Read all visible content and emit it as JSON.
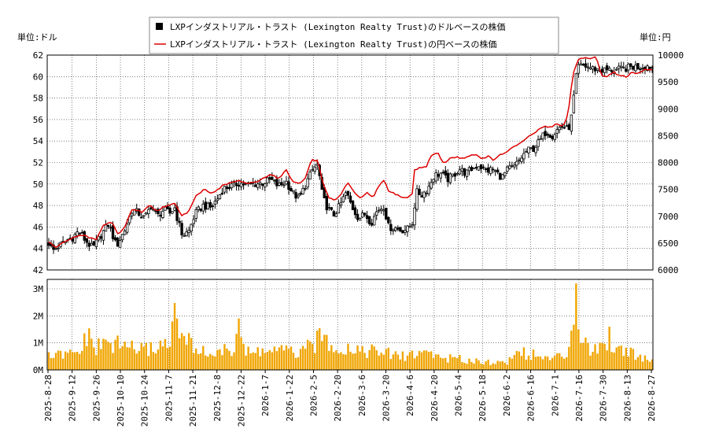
{
  "chart_data": [
    {
      "type": "candlestick+line",
      "legend": {
        "placement": "top-center",
        "items": [
          {
            "label": "LXPインダストリアル・トラスト (Lexington Realty Trust)のドルベースの株価",
            "color": "#000000",
            "marker": "square"
          },
          {
            "label": "LXPインダストリアル・トラスト (Lexington Realty Trust)の円ベースの株価",
            "color": "#dd0000",
            "marker": "line"
          }
        ]
      },
      "left_unit_label": "単位:ドル",
      "right_unit_label": "単位:円",
      "y_left": {
        "min": 42,
        "max": 62,
        "ticks": [
          "42",
          "44",
          "46",
          "48",
          "50",
          "52",
          "54",
          "56",
          "58",
          "60",
          "62"
        ]
      },
      "y_right": {
        "min": 6000,
        "max": 10000,
        "ticks": [
          "6000",
          "6500",
          "7000",
          "7500",
          "8000",
          "8500",
          "9000",
          "9500",
          "10000"
        ]
      },
      "grid": true,
      "usd_close_anchors": [
        [
          0,
          44.5
        ],
        [
          5,
          43.8
        ],
        [
          12,
          44.2
        ],
        [
          20,
          44.6
        ],
        [
          30,
          45.0
        ],
        [
          38,
          45.6
        ],
        [
          46,
          44.8
        ],
        [
          56,
          44.0
        ],
        [
          66,
          45.2
        ],
        [
          76,
          46.3
        ],
        [
          86,
          44.2
        ],
        [
          96,
          45.6
        ],
        [
          106,
          47.6
        ],
        [
          114,
          47.3
        ],
        [
          122,
          46.8
        ],
        [
          130,
          48.0
        ],
        [
          138,
          47.0
        ],
        [
          146,
          47.6
        ],
        [
          154,
          47.3
        ],
        [
          160,
          47.8
        ],
        [
          164,
          46.6
        ],
        [
          170,
          45.2
        ],
        [
          178,
          45.6
        ],
        [
          186,
          47.2
        ],
        [
          196,
          48.0
        ],
        [
          206,
          47.8
        ],
        [
          214,
          48.6
        ],
        [
          222,
          49.6
        ],
        [
          232,
          49.8
        ],
        [
          242,
          50.1
        ],
        [
          252,
          49.9
        ],
        [
          262,
          50.0
        ],
        [
          272,
          50.1
        ],
        [
          282,
          50.4
        ],
        [
          292,
          49.8
        ],
        [
          302,
          50.2
        ],
        [
          310,
          49.2
        ],
        [
          318,
          48.6
        ],
        [
          328,
          50.2
        ],
        [
          336,
          51.4
        ],
        [
          342,
          51.8
        ],
        [
          348,
          48.8
        ],
        [
          354,
          47.8
        ],
        [
          362,
          47.1
        ],
        [
          370,
          48.0
        ],
        [
          378,
          49.2
        ],
        [
          386,
          47.8
        ],
        [
          394,
          46.8
        ],
        [
          402,
          47.2
        ],
        [
          410,
          46.4
        ],
        [
          418,
          47.6
        ],
        [
          426,
          47.9
        ],
        [
          432,
          46.0
        ],
        [
          440,
          45.9
        ],
        [
          448,
          45.7
        ],
        [
          456,
          45.8
        ],
        [
          464,
          46.6
        ],
        [
          466,
          49.3
        ],
        [
          474,
          49.0
        ],
        [
          482,
          49.6
        ],
        [
          490,
          50.8
        ],
        [
          498,
          51.0
        ],
        [
          506,
          50.4
        ],
        [
          514,
          50.8
        ],
        [
          522,
          51.4
        ],
        [
          530,
          51.0
        ],
        [
          538,
          51.4
        ],
        [
          546,
          51.8
        ],
        [
          556,
          51.2
        ],
        [
          564,
          51.4
        ],
        [
          570,
          51.0
        ],
        [
          576,
          50.6
        ],
        [
          584,
          51.4
        ],
        [
          592,
          51.6
        ],
        [
          600,
          52.4
        ],
        [
          608,
          53.1
        ],
        [
          616,
          53.3
        ],
        [
          624,
          54.0
        ],
        [
          632,
          54.9
        ],
        [
          640,
          54.5
        ],
        [
          648,
          55.2
        ],
        [
          654,
          55.4
        ],
        [
          660,
          55.0
        ],
        [
          664,
          56.0
        ],
        [
          668,
          58.5
        ],
        [
          672,
          60.9
        ],
        [
          680,
          61.0
        ],
        [
          690,
          60.8
        ],
        [
          700,
          60.6
        ],
        [
          710,
          60.6
        ],
        [
          720,
          60.6
        ],
        [
          730,
          60.7
        ],
        [
          740,
          60.9
        ],
        [
          750,
          60.9
        ],
        [
          760,
          61.0
        ],
        [
          767,
          60.9
        ]
      ],
      "jpy_close_anchors": [
        [
          0,
          6520
        ],
        [
          8,
          6420
        ],
        [
          18,
          6500
        ],
        [
          26,
          6580
        ],
        [
          34,
          6620
        ],
        [
          44,
          6640
        ],
        [
          52,
          6600
        ],
        [
          60,
          6560
        ],
        [
          70,
          6840
        ],
        [
          80,
          6900
        ],
        [
          88,
          6660
        ],
        [
          96,
          6780
        ],
        [
          106,
          7140
        ],
        [
          118,
          7080
        ],
        [
          128,
          7200
        ],
        [
          138,
          7100
        ],
        [
          146,
          7180
        ],
        [
          154,
          7200
        ],
        [
          160,
          7240
        ],
        [
          168,
          7020
        ],
        [
          176,
          7060
        ],
        [
          188,
          7400
        ],
        [
          198,
          7500
        ],
        [
          206,
          7440
        ],
        [
          214,
          7480
        ],
        [
          222,
          7580
        ],
        [
          232,
          7630
        ],
        [
          242,
          7660
        ],
        [
          252,
          7610
        ],
        [
          262,
          7620
        ],
        [
          272,
          7700
        ],
        [
          282,
          7790
        ],
        [
          292,
          7700
        ],
        [
          302,
          7860
        ],
        [
          310,
          7640
        ],
        [
          318,
          7600
        ],
        [
          326,
          7700
        ],
        [
          334,
          8060
        ],
        [
          342,
          8030
        ],
        [
          348,
          7650
        ],
        [
          356,
          7330
        ],
        [
          364,
          7300
        ],
        [
          372,
          7420
        ],
        [
          380,
          7630
        ],
        [
          388,
          7440
        ],
        [
          396,
          7330
        ],
        [
          404,
          7440
        ],
        [
          412,
          7340
        ],
        [
          420,
          7570
        ],
        [
          426,
          7680
        ],
        [
          432,
          7460
        ],
        [
          440,
          7420
        ],
        [
          448,
          7360
        ],
        [
          456,
          7340
        ],
        [
          462,
          7420
        ],
        [
          464,
          7860
        ],
        [
          472,
          7900
        ],
        [
          480,
          7930
        ],
        [
          486,
          8120
        ],
        [
          494,
          8190
        ],
        [
          502,
          7980
        ],
        [
          510,
          8080
        ],
        [
          518,
          8100
        ],
        [
          526,
          8080
        ],
        [
          534,
          8120
        ],
        [
          542,
          8160
        ],
        [
          550,
          8060
        ],
        [
          558,
          8120
        ],
        [
          566,
          8040
        ],
        [
          574,
          8140
        ],
        [
          582,
          8200
        ],
        [
          590,
          8280
        ],
        [
          598,
          8340
        ],
        [
          606,
          8440
        ],
        [
          614,
          8520
        ],
        [
          622,
          8600
        ],
        [
          630,
          8680
        ],
        [
          638,
          8660
        ],
        [
          646,
          8720
        ],
        [
          654,
          8680
        ],
        [
          660,
          8880
        ],
        [
          666,
          9620
        ],
        [
          672,
          9900
        ],
        [
          680,
          9960
        ],
        [
          688,
          9920
        ],
        [
          696,
          9960
        ],
        [
          702,
          9640
        ],
        [
          710,
          9600
        ],
        [
          718,
          9680
        ],
        [
          726,
          9620
        ],
        [
          734,
          9600
        ],
        [
          742,
          9680
        ],
        [
          748,
          9640
        ],
        [
          754,
          9700
        ],
        [
          760,
          9740
        ],
        [
          767,
          9720
        ]
      ],
      "volume": {
        "ticks": [
          "0M",
          "1M",
          "2M",
          "3M"
        ],
        "max": 3.2,
        "anchors": [
          [
            0,
            0.5
          ],
          [
            20,
            0.55
          ],
          [
            40,
            0.6
          ],
          [
            46,
            1.3
          ],
          [
            60,
            0.8
          ],
          [
            72,
            1.0
          ],
          [
            90,
            0.9
          ],
          [
            104,
            0.9
          ],
          [
            120,
            0.7
          ],
          [
            140,
            0.9
          ],
          [
            150,
            1.0
          ],
          [
            160,
            1.8
          ],
          [
            170,
            1.1
          ],
          [
            186,
            0.9
          ],
          [
            198,
            0.6
          ],
          [
            216,
            0.65
          ],
          [
            236,
            0.75
          ],
          [
            240,
            1.8
          ],
          [
            250,
            0.6
          ],
          [
            270,
            0.7
          ],
          [
            300,
            0.7
          ],
          [
            320,
            0.6
          ],
          [
            350,
            1.25
          ],
          [
            370,
            0.8
          ],
          [
            390,
            0.8
          ],
          [
            410,
            0.7
          ],
          [
            430,
            0.6
          ],
          [
            450,
            0.5
          ],
          [
            470,
            0.65
          ],
          [
            480,
            0.7
          ],
          [
            500,
            0.45
          ],
          [
            520,
            0.4
          ],
          [
            540,
            0.35
          ],
          [
            560,
            0.3
          ],
          [
            580,
            0.25
          ],
          [
            600,
            0.7
          ],
          [
            620,
            0.5
          ],
          [
            640,
            0.4
          ],
          [
            660,
            0.6
          ],
          [
            670,
            3.2
          ],
          [
            676,
            1.5
          ],
          [
            686,
            0.8
          ],
          [
            700,
            0.6
          ],
          [
            712,
            1.3
          ],
          [
            722,
            0.7
          ],
          [
            734,
            0.8
          ],
          [
            750,
            0.5
          ],
          [
            767,
            0.4
          ]
        ],
        "spikes": [
          [
            163,
            1.9
          ],
          [
            241,
            1.9
          ],
          [
            350,
            1.3
          ],
          [
            472,
            0.7
          ],
          [
            596,
            0.7
          ],
          [
            671,
            3.2
          ],
          [
            674,
            1.5
          ],
          [
            702,
            1.0
          ],
          [
            713,
            1.6
          ],
          [
            728,
            0.9
          ]
        ]
      },
      "x_tick_labels": [
        "2025-8-28",
        "2025-9-12",
        "2025-9-26",
        "2025-10-10",
        "2025-10-24",
        "2025-11-7",
        "2025-11-21",
        "2025-12-8",
        "2025-12-22",
        "2026-1-7",
        "2026-1-22",
        "2026-2-5",
        "2026-2-20",
        "2026-3-6",
        "2026-3-20",
        "2026-4-6",
        "2026-4-20",
        "2026-5-4",
        "2026-5-18",
        "2026-6-2",
        "2026-6-16",
        "2026-7-1",
        "2026-7-16",
        "2026-7-30",
        "2026-8-13",
        "2026-8-27"
      ],
      "trading_days": 255
    }
  ]
}
